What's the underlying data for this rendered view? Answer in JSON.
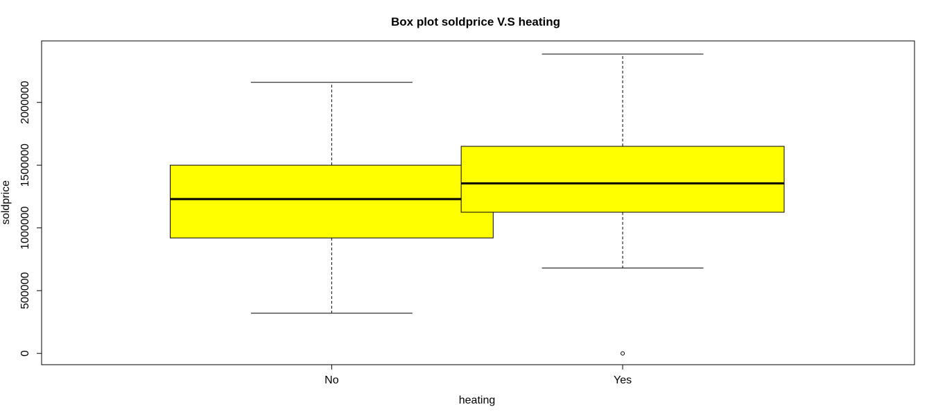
{
  "chart_data": {
    "type": "boxplot",
    "title": "Box plot soldprice V.S heating",
    "xlabel": "heating",
    "ylabel": "soldprice",
    "ylim": [
      -90000,
      2490000
    ],
    "yticks": [
      0,
      500000,
      1000000,
      1500000,
      2000000
    ],
    "ytick_labels": [
      "0",
      "500000",
      "1000000",
      "1500000",
      "2000000"
    ],
    "categories": [
      "No",
      "Yes"
    ],
    "boxes": [
      {
        "category": "No",
        "whisker_low": 320000,
        "q1": 920000,
        "median": 1230000,
        "q3": 1500000,
        "whisker_high": 2160000,
        "outliers": []
      },
      {
        "category": "Yes",
        "whisker_low": 680000,
        "q1": 1125000,
        "median": 1355000,
        "q3": 1650000,
        "whisker_high": 2385000,
        "outliers": [
          0
        ]
      }
    ],
    "box_color": "#FFFF00",
    "line_color": "#000000",
    "grid": false,
    "legend": "none"
  }
}
